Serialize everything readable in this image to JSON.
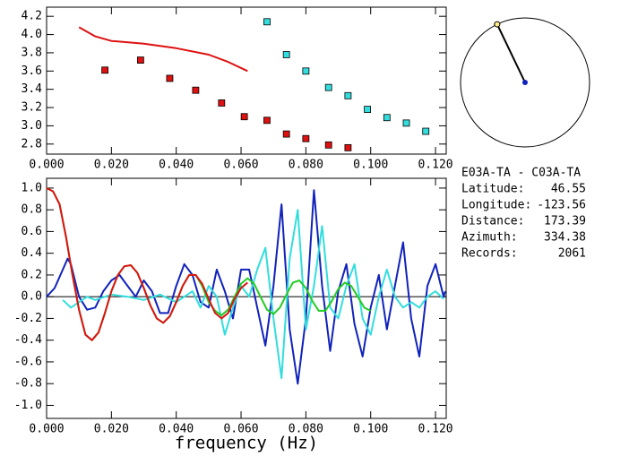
{
  "chart_data": [
    {
      "type": "scatter",
      "xlim": [
        0,
        0.1233
      ],
      "ylim": [
        2.69,
        4.3
      ],
      "xticks": [
        {
          "value": 0,
          "label": "0.000"
        },
        {
          "value": 0.02,
          "label": "0.020"
        },
        {
          "value": 0.04,
          "label": "0.040"
        },
        {
          "value": 0.06,
          "label": "0.060"
        },
        {
          "value": 0.08,
          "label": "0.080"
        },
        {
          "value": 0.1,
          "label": "0.100"
        },
        {
          "value": 0.12,
          "label": "0.120"
        }
      ],
      "yticks": [
        2.8,
        {
          "value": 3,
          "label": "3.0"
        },
        3.2,
        3.4,
        3.6,
        3.8,
        {
          "value": 4,
          "label": "4.0"
        },
        4.2
      ],
      "series": [
        {
          "mode": "markers",
          "color": "#dd1111",
          "x": [
            0.018,
            0.029,
            0.038,
            0.046,
            0.054,
            0.061,
            0.068,
            0.074,
            0.08,
            0.087,
            0.093
          ],
          "values": [
            3.61,
            3.72,
            3.52,
            3.39,
            3.25,
            3.1,
            3.06,
            2.91,
            2.86,
            2.79,
            2.76
          ]
        },
        {
          "mode": "markers",
          "color": "#33dddd",
          "x": [
            0.068,
            0.074,
            0.08,
            0.087,
            0.093,
            0.099,
            0.105,
            0.111,
            0.117
          ],
          "values": [
            4.14,
            3.78,
            3.6,
            3.42,
            3.33,
            3.18,
            3.09,
            3.03,
            2.94
          ]
        },
        {
          "mode": "line",
          "color": "#dd1111",
          "x": [
            0.01,
            0.015,
            0.02,
            0.03,
            0.04,
            0.05,
            0.056,
            0.062
          ],
          "values": [
            4.08,
            3.98,
            3.93,
            3.9,
            3.85,
            3.78,
            3.7,
            3.6
          ]
        }
      ]
    },
    {
      "type": "line",
      "xlabel": "frequency (Hz)",
      "xlim": [
        0,
        0.1233
      ],
      "ylim": [
        -1.12,
        1.09
      ],
      "hlines": [
        0
      ],
      "xticks": [
        {
          "value": 0,
          "label": "0.000"
        },
        {
          "value": 0.02,
          "label": "0.020"
        },
        {
          "value": 0.04,
          "label": "0.040"
        },
        {
          "value": 0.06,
          "label": "0.060"
        },
        {
          "value": 0.08,
          "label": "0.080"
        },
        {
          "value": 0.1,
          "label": "0.100"
        },
        {
          "value": 0.12,
          "label": "0.120"
        }
      ],
      "yticks": [
        {
          "value": -1,
          "label": "-1.0"
        },
        -0.8,
        -0.6,
        -0.4,
        -0.2,
        {
          "value": 0,
          "label": "0.0"
        },
        0.2,
        0.4,
        0.6,
        0.8,
        {
          "value": 1,
          "label": "1.0"
        }
      ],
      "series": [
        {
          "mode": "line",
          "color": "#1122bb",
          "x": [
            0,
            0.0025,
            0.005,
            0.0065,
            0.0075,
            0.01,
            0.0125,
            0.015,
            0.0175,
            0.02,
            0.0225,
            0.025,
            0.0275,
            0.03,
            0.0325,
            0.035,
            0.0375,
            0.04,
            0.0425,
            0.045,
            0.0475,
            0.05,
            0.0525,
            0.055,
            0.0575,
            0.06,
            0.0625,
            0.065,
            0.0675,
            0.07,
            0.0725,
            0.075,
            0.0775,
            0.08,
            0.0825,
            0.085,
            0.0875,
            0.09,
            0.0925,
            0.095,
            0.0975,
            0.1,
            0.1025,
            0.105,
            0.1075,
            0.11,
            0.1125,
            0.115,
            0.1175,
            0.12,
            0.1225,
            0.123
          ],
          "values": [
            0,
            0.08,
            0.25,
            0.35,
            0.3,
            0.0,
            -0.12,
            -0.1,
            0.05,
            0.15,
            0.2,
            0.1,
            0.0,
            0.15,
            0.05,
            -0.15,
            -0.15,
            0.1,
            0.3,
            0.2,
            -0.05,
            -0.1,
            0.25,
            0.05,
            -0.2,
            0.25,
            0.25,
            -0.1,
            -0.45,
            0.1,
            0.85,
            -0.3,
            -0.8,
            -0.2,
            0.98,
            0.1,
            -0.5,
            0.05,
            0.3,
            -0.25,
            -0.55,
            -0.1,
            0.2,
            -0.3,
            0.1,
            0.5,
            -0.2,
            -0.55,
            0.1,
            0.3,
            0.0,
            0.05
          ]
        },
        {
          "mode": "line",
          "color": "#33dddd",
          "x": [
            0.005,
            0.0075,
            0.01,
            0.0125,
            0.015,
            0.02,
            0.025,
            0.03,
            0.035,
            0.04,
            0.045,
            0.0475,
            0.05,
            0.0525,
            0.055,
            0.0575,
            0.06,
            0.0625,
            0.065,
            0.0675,
            0.07,
            0.0725,
            0.075,
            0.0775,
            0.08,
            0.0825,
            0.085,
            0.0875,
            0.09,
            0.0925,
            0.095,
            0.0975,
            0.1,
            0.1025,
            0.105,
            0.1075,
            0.11,
            0.1125,
            0.115,
            0.1175,
            0.12,
            0.1225
          ],
          "values": [
            -0.03,
            -0.1,
            -0.05,
            0.0,
            -0.03,
            0.02,
            0.0,
            -0.03,
            0.02,
            -0.05,
            0.05,
            -0.1,
            0.1,
            0.0,
            -0.35,
            -0.1,
            0.1,
            0.0,
            0.25,
            0.45,
            -0.2,
            -0.75,
            0.35,
            0.8,
            -0.3,
            0.1,
            0.65,
            -0.1,
            -0.2,
            0.1,
            0.3,
            -0.2,
            -0.35,
            0.0,
            0.25,
            0.0,
            -0.1,
            -0.05,
            -0.1,
            0.0,
            0.05,
            -0.02
          ]
        },
        {
          "mode": "line",
          "color": "#22cc22",
          "x": [
            0,
            0.002,
            0.004,
            0.006,
            0.008,
            0.01,
            0.012,
            0.014,
            0.016,
            0.018,
            0.02,
            0.022,
            0.024,
            0.026,
            0.028,
            0.03,
            0.032,
            0.034,
            0.036,
            0.038,
            0.04,
            0.042,
            0.044,
            0.046,
            0.048,
            0.05,
            0.052,
            0.054,
            0.056,
            0.058,
            0.06,
            0.062,
            0.064,
            0.066,
            0.068,
            0.07,
            0.072,
            0.074,
            0.076,
            0.078,
            0.08,
            0.082,
            0.084,
            0.086,
            0.088,
            0.09,
            0.092,
            0.094,
            0.096,
            0.098,
            0.1
          ],
          "values": [
            1.0,
            0.97,
            0.85,
            0.55,
            0.2,
            -0.12,
            -0.35,
            -0.4,
            -0.33,
            -0.15,
            0.05,
            0.2,
            0.28,
            0.29,
            0.22,
            0.08,
            -0.08,
            -0.2,
            -0.24,
            -0.18,
            -0.05,
            0.1,
            0.2,
            0.2,
            0.1,
            -0.05,
            -0.13,
            -0.17,
            -0.12,
            0.0,
            0.12,
            0.17,
            0.12,
            0.0,
            -0.12,
            -0.16,
            -0.1,
            0.02,
            0.13,
            0.15,
            0.08,
            -0.04,
            -0.13,
            -0.13,
            -0.04,
            0.07,
            0.13,
            0.1,
            0.0,
            -0.1,
            -0.13
          ]
        },
        {
          "mode": "line",
          "color": "#dd1111",
          "x": [
            0,
            0.002,
            0.004,
            0.006,
            0.008,
            0.01,
            0.012,
            0.014,
            0.016,
            0.018,
            0.02,
            0.022,
            0.024,
            0.026,
            0.028,
            0.03,
            0.032,
            0.034,
            0.036,
            0.038,
            0.04,
            0.042,
            0.044,
            0.046,
            0.048,
            0.05,
            0.052,
            0.054,
            0.056,
            0.058,
            0.06,
            0.062
          ],
          "values": [
            1.0,
            0.97,
            0.85,
            0.55,
            0.2,
            -0.12,
            -0.35,
            -0.4,
            -0.33,
            -0.15,
            0.05,
            0.2,
            0.28,
            0.29,
            0.22,
            0.08,
            -0.08,
            -0.2,
            -0.24,
            -0.18,
            -0.05,
            0.1,
            0.2,
            0.2,
            0.12,
            -0.02,
            -0.15,
            -0.2,
            -0.15,
            -0.02,
            0.08,
            0.13
          ]
        }
      ]
    }
  ],
  "info": {
    "title": "E03A-TA - C03A-TA",
    "rows": [
      {
        "label": "Latitude:",
        "value": 46.55
      },
      {
        "label": "Longitude:",
        "value": -123.56
      },
      {
        "label": "Distance:",
        "value": 173.39
      },
      {
        "label": "Azimuth:",
        "value": 334.38
      },
      {
        "label": "Records:",
        "value": 2061
      }
    ]
  }
}
